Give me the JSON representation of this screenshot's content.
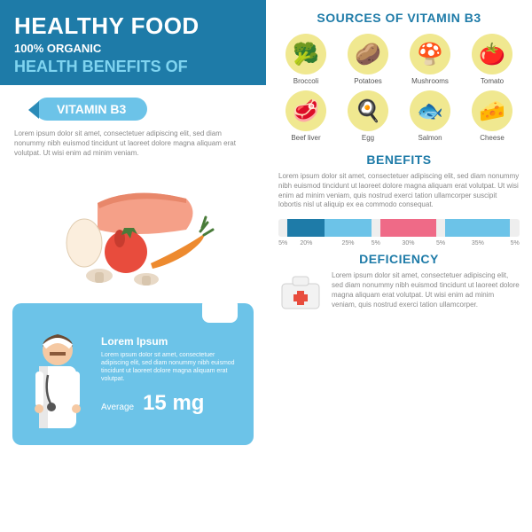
{
  "header": {
    "title": "HEALTHY FOOD",
    "subtitle": "100% ORGANIC",
    "benefits_of": "HEALTH BENEFITS OF"
  },
  "vitamin_badge": "VITAMIN B3",
  "lorem_short": "Lorem ipsum dolor sit amet, consectetuer adipiscing elit, sed diam nonummy nibh euismod tincidunt ut laoreet dolore magna aliquam erat volutpat. Ut wisi enim ad minim veniam.",
  "dosage": {
    "title": "Lorem Ipsum",
    "lorem": "Lorem ipsum dolor sit amet, consectetuer adipiscing elit, sed diam nonummy nibh euismod tincidunt ut laoreet dolore magna aliquam erat volutpat.",
    "avg_label": "Average",
    "avg_value": "15 mg"
  },
  "sources": {
    "title": "SOURCES OF VITAMIN B3",
    "items": [
      {
        "label": "Broccoli",
        "bg": "#f0e890",
        "emoji": "🥦"
      },
      {
        "label": "Potatoes",
        "bg": "#f0e890",
        "emoji": "🥔"
      },
      {
        "label": "Mushrooms",
        "bg": "#f0e890",
        "emoji": "🍄"
      },
      {
        "label": "Tomato",
        "bg": "#f0e890",
        "emoji": "🍅"
      },
      {
        "label": "Beef liver",
        "bg": "#f0e890",
        "emoji": "🥩"
      },
      {
        "label": "Egg",
        "bg": "#f0e890",
        "emoji": "🍳"
      },
      {
        "label": "Salmon",
        "bg": "#f0e890",
        "emoji": "🐟"
      },
      {
        "label": "Cheese",
        "bg": "#f0e890",
        "emoji": "🧀"
      }
    ]
  },
  "benefits": {
    "title": "BENEFITS",
    "lorem": "Lorem ipsum dolor sit amet, consectetuer adipiscing elit, sed diam nonummy nibh euismod tincidunt ut laoreet dolore magna aliquam erat volutpat. Ut wisi enim ad minim veniam, quis nostrud exerci tation ullamcorper suscipit lobortis nisl ut aliquip ex ea commodo consequat.",
    "chart": {
      "type": "stacked-bar",
      "segments": [
        {
          "value": 5,
          "color": "#eeeeee"
        },
        {
          "value": 20,
          "color": "#1e7ba8"
        },
        {
          "value": 25,
          "color": "#6cc3e8"
        },
        {
          "value": 5,
          "color": "#eeeeee"
        },
        {
          "value": 30,
          "color": "#ef6a87"
        },
        {
          "value": 5,
          "color": "#eeeeee"
        },
        {
          "value": 35,
          "color": "#6cc3e8"
        },
        {
          "value": 5,
          "color": "#eeeeee"
        }
      ],
      "ticks": [
        "5%",
        "20%",
        "25%",
        "5%",
        "30%",
        "5%",
        "35%",
        "5%"
      ]
    }
  },
  "deficiency": {
    "title": "DEFICIENCY",
    "lorem": "Lorem ipsum dolor sit amet, consectetuer adipiscing elit, sed diam nonummy nibh euismod tincidunt ut laoreet dolore magna aliquam erat volutpat. Ut wisi enim ad minim veniam, quis nostrud exerci tation ullamcorper."
  },
  "colors": {
    "header_bg": "#1e7ba8",
    "accent_light": "#6cc3e8",
    "accent_cyan": "#7fd4f0",
    "pink": "#ef6a87",
    "text_muted": "#8a8a8a"
  }
}
